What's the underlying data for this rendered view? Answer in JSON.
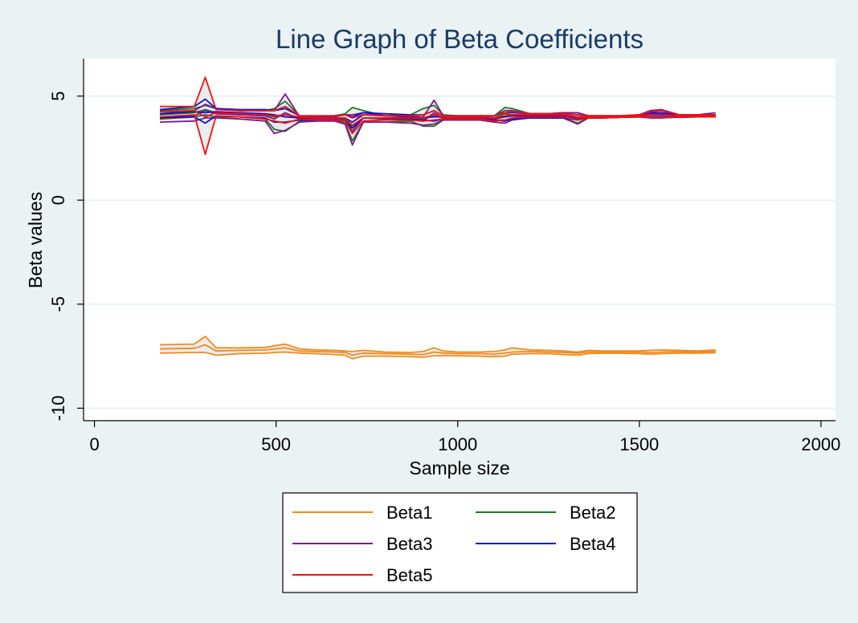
{
  "chart_data": {
    "type": "line",
    "title": "Line Graph of Beta Coefficients",
    "xlabel": "Sample size",
    "ylabel": "Beta values",
    "xlim": [
      -30,
      2040
    ],
    "ylim": [
      -10.6,
      6.8
    ],
    "xticks": [
      0,
      500,
      1000,
      1500,
      2000
    ],
    "xtick_labels": [
      "0",
      "500",
      "1000",
      "1500",
      "2000"
    ],
    "yticks": [
      -10,
      -5,
      0,
      5
    ],
    "ytick_labels": [
      "-10",
      "-5",
      "0",
      "5"
    ],
    "grid": "horizontal",
    "legend_position": "bottom",
    "colors": {
      "background": "#eaf2f3",
      "plot_background": "#ffffff",
      "band_fill": "#e7e9eb",
      "title": "#1a3a68"
    },
    "x": [
      180,
      275,
      305,
      335,
      400,
      470,
      495,
      525,
      565,
      610,
      660,
      690,
      710,
      740,
      800,
      870,
      905,
      935,
      960,
      1000,
      1060,
      1100,
      1130,
      1150,
      1200,
      1250,
      1290,
      1330,
      1360,
      1400,
      1450,
      1500,
      1530,
      1560,
      1610,
      1660,
      1710
    ],
    "series": [
      {
        "name": "Beta1",
        "color": "#f28a1b",
        "mean": [
          -7.15,
          -7.12,
          -6.95,
          -7.25,
          -7.22,
          -7.2,
          -7.15,
          -7.1,
          -7.25,
          -7.28,
          -7.3,
          -7.32,
          -7.45,
          -7.35,
          -7.38,
          -7.4,
          -7.42,
          -7.3,
          -7.35,
          -7.38,
          -7.38,
          -7.4,
          -7.35,
          -7.3,
          -7.28,
          -7.3,
          -7.32,
          -7.35,
          -7.3,
          -7.3,
          -7.3,
          -7.3,
          -7.32,
          -7.3,
          -7.28,
          -7.3,
          -7.28
        ],
        "upper": [
          -6.95,
          -6.92,
          -6.55,
          -7.1,
          -7.1,
          -7.08,
          -7.0,
          -6.92,
          -7.15,
          -7.2,
          -7.22,
          -7.25,
          -7.28,
          -7.22,
          -7.3,
          -7.32,
          -7.28,
          -7.1,
          -7.25,
          -7.3,
          -7.3,
          -7.28,
          -7.2,
          -7.1,
          -7.2,
          -7.22,
          -7.25,
          -7.3,
          -7.22,
          -7.25,
          -7.25,
          -7.25,
          -7.22,
          -7.2,
          -7.22,
          -7.25,
          -7.2
        ],
        "lower": [
          -7.35,
          -7.32,
          -7.32,
          -7.45,
          -7.38,
          -7.36,
          -7.32,
          -7.3,
          -7.35,
          -7.38,
          -7.42,
          -7.45,
          -7.62,
          -7.5,
          -7.5,
          -7.52,
          -7.55,
          -7.48,
          -7.48,
          -7.48,
          -7.5,
          -7.52,
          -7.5,
          -7.4,
          -7.38,
          -7.38,
          -7.42,
          -7.45,
          -7.38,
          -7.36,
          -7.36,
          -7.38,
          -7.4,
          -7.38,
          -7.35,
          -7.35,
          -7.34
        ]
      },
      {
        "name": "Beta2",
        "color": "#1e7a24",
        "mean": [
          4.1,
          4.2,
          4.35,
          4.2,
          4.15,
          4.1,
          4.0,
          4.1,
          3.95,
          3.9,
          3.95,
          3.9,
          3.5,
          3.95,
          3.9,
          3.95,
          3.9,
          4.05,
          3.95,
          3.95,
          3.95,
          3.95,
          4.15,
          4.1,
          4.05,
          4.05,
          4.1,
          3.95,
          4.0,
          4.0,
          4.02,
          4.05,
          4.1,
          4.1,
          4.05,
          4.05,
          4.05
        ],
        "upper": [
          4.3,
          4.4,
          4.55,
          4.4,
          4.3,
          4.3,
          4.4,
          4.75,
          4.05,
          4.02,
          4.05,
          4.15,
          4.45,
          4.3,
          4.05,
          4.1,
          4.4,
          4.55,
          4.1,
          4.05,
          4.05,
          4.05,
          4.45,
          4.4,
          4.15,
          4.15,
          4.2,
          4.2,
          4.05,
          4.05,
          4.05,
          4.1,
          4.3,
          4.3,
          4.1,
          4.08,
          4.1
        ],
        "lower": [
          3.9,
          4.0,
          4.1,
          4.0,
          4.0,
          3.9,
          3.4,
          3.3,
          3.8,
          3.8,
          3.85,
          3.7,
          2.85,
          3.75,
          3.75,
          3.8,
          3.55,
          3.55,
          3.85,
          3.85,
          3.85,
          3.85,
          3.85,
          3.9,
          3.95,
          3.95,
          3.95,
          3.7,
          3.95,
          3.95,
          3.98,
          4.0,
          3.95,
          3.95,
          3.98,
          4.0,
          4.0
        ]
      },
      {
        "name": "Beta3",
        "color": "#7b1b8c",
        "mean": [
          3.95,
          4.05,
          4.3,
          4.15,
          4.1,
          4.05,
          3.9,
          4.2,
          3.9,
          3.9,
          3.9,
          3.85,
          3.3,
          3.95,
          3.9,
          3.85,
          3.8,
          4.2,
          3.95,
          3.95,
          3.95,
          3.9,
          4.0,
          4.05,
          4.05,
          4.05,
          4.1,
          3.9,
          4.0,
          4.0,
          4.02,
          4.05,
          4.15,
          4.15,
          4.05,
          4.05,
          4.1
        ],
        "upper": [
          4.15,
          4.3,
          4.6,
          4.4,
          4.3,
          4.3,
          4.3,
          5.1,
          4.0,
          4.0,
          4.0,
          4.1,
          4.1,
          4.2,
          4.05,
          4.0,
          4.0,
          4.8,
          4.05,
          4.05,
          4.05,
          4.05,
          4.3,
          4.3,
          4.15,
          4.15,
          4.2,
          4.2,
          4.05,
          4.05,
          4.05,
          4.1,
          4.3,
          4.35,
          4.1,
          4.1,
          4.2
        ],
        "lower": [
          3.75,
          3.8,
          3.95,
          3.95,
          3.9,
          3.8,
          3.2,
          3.35,
          3.75,
          3.8,
          3.8,
          3.65,
          2.65,
          3.75,
          3.75,
          3.7,
          3.6,
          3.65,
          3.85,
          3.85,
          3.85,
          3.75,
          3.7,
          3.85,
          3.95,
          3.95,
          3.95,
          3.65,
          3.95,
          3.95,
          3.98,
          4.0,
          4.0,
          4.0,
          3.98,
          4.0,
          4.0
        ]
      },
      {
        "name": "Beta4",
        "color": "#1010d0",
        "mean": [
          4.15,
          4.25,
          4.2,
          4.25,
          4.2,
          4.15,
          4.1,
          4.0,
          3.95,
          3.95,
          3.95,
          3.95,
          3.75,
          4.1,
          4.05,
          4.0,
          3.95,
          4.0,
          4.0,
          4.0,
          4.0,
          3.95,
          4.0,
          4.05,
          4.05,
          4.05,
          4.05,
          4.0,
          4.0,
          4.02,
          4.02,
          4.05,
          4.08,
          4.08,
          4.05,
          4.05,
          4.05
        ],
        "upper": [
          4.35,
          4.5,
          4.85,
          4.4,
          4.35,
          4.35,
          4.3,
          4.4,
          4.05,
          4.05,
          4.05,
          4.1,
          4.0,
          4.2,
          4.15,
          4.1,
          4.1,
          4.3,
          4.05,
          4.05,
          4.05,
          4.05,
          4.2,
          4.2,
          4.15,
          4.15,
          4.15,
          4.1,
          4.05,
          4.05,
          4.05,
          4.1,
          4.2,
          4.2,
          4.1,
          4.1,
          4.1
        ],
        "lower": [
          3.95,
          4.0,
          3.7,
          4.05,
          4.0,
          3.95,
          3.75,
          3.75,
          3.85,
          3.85,
          3.85,
          3.8,
          3.45,
          3.95,
          3.95,
          3.9,
          3.85,
          3.8,
          3.9,
          3.9,
          3.9,
          3.85,
          3.8,
          3.9,
          3.95,
          3.95,
          3.95,
          3.85,
          3.95,
          3.95,
          3.98,
          4.0,
          3.95,
          3.95,
          4.0,
          4.0,
          4.0
        ]
      },
      {
        "name": "Beta5",
        "color": "#ee1111",
        "mean": [
          4.25,
          4.3,
          4.0,
          4.2,
          4.15,
          4.1,
          4.05,
          4.1,
          4.0,
          3.95,
          3.95,
          3.95,
          3.6,
          3.95,
          3.95,
          3.95,
          3.95,
          4.1,
          4.0,
          4.0,
          4.0,
          3.95,
          4.05,
          4.1,
          4.1,
          4.1,
          4.1,
          4.0,
          4.0,
          4.0,
          4.02,
          4.05,
          4.1,
          4.12,
          4.05,
          4.05,
          4.05
        ],
        "upper": [
          4.5,
          4.5,
          5.9,
          4.35,
          4.3,
          4.3,
          4.3,
          4.5,
          4.05,
          4.05,
          4.05,
          4.1,
          3.95,
          4.1,
          4.05,
          4.05,
          4.1,
          4.3,
          4.05,
          4.05,
          4.05,
          4.05,
          4.2,
          4.25,
          4.15,
          4.15,
          4.15,
          4.1,
          4.05,
          4.05,
          4.05,
          4.1,
          4.25,
          4.3,
          4.1,
          4.1,
          4.1
        ],
        "lower": [
          4.0,
          4.1,
          2.2,
          4.05,
          4.0,
          3.9,
          3.8,
          3.7,
          3.9,
          3.85,
          3.85,
          3.8,
          3.2,
          3.8,
          3.85,
          3.85,
          3.8,
          3.85,
          3.9,
          3.9,
          3.9,
          3.8,
          3.85,
          3.95,
          4.0,
          4.0,
          4.0,
          3.85,
          3.95,
          3.95,
          3.98,
          4.0,
          3.95,
          3.95,
          4.0,
          4.0,
          4.0
        ]
      }
    ]
  }
}
